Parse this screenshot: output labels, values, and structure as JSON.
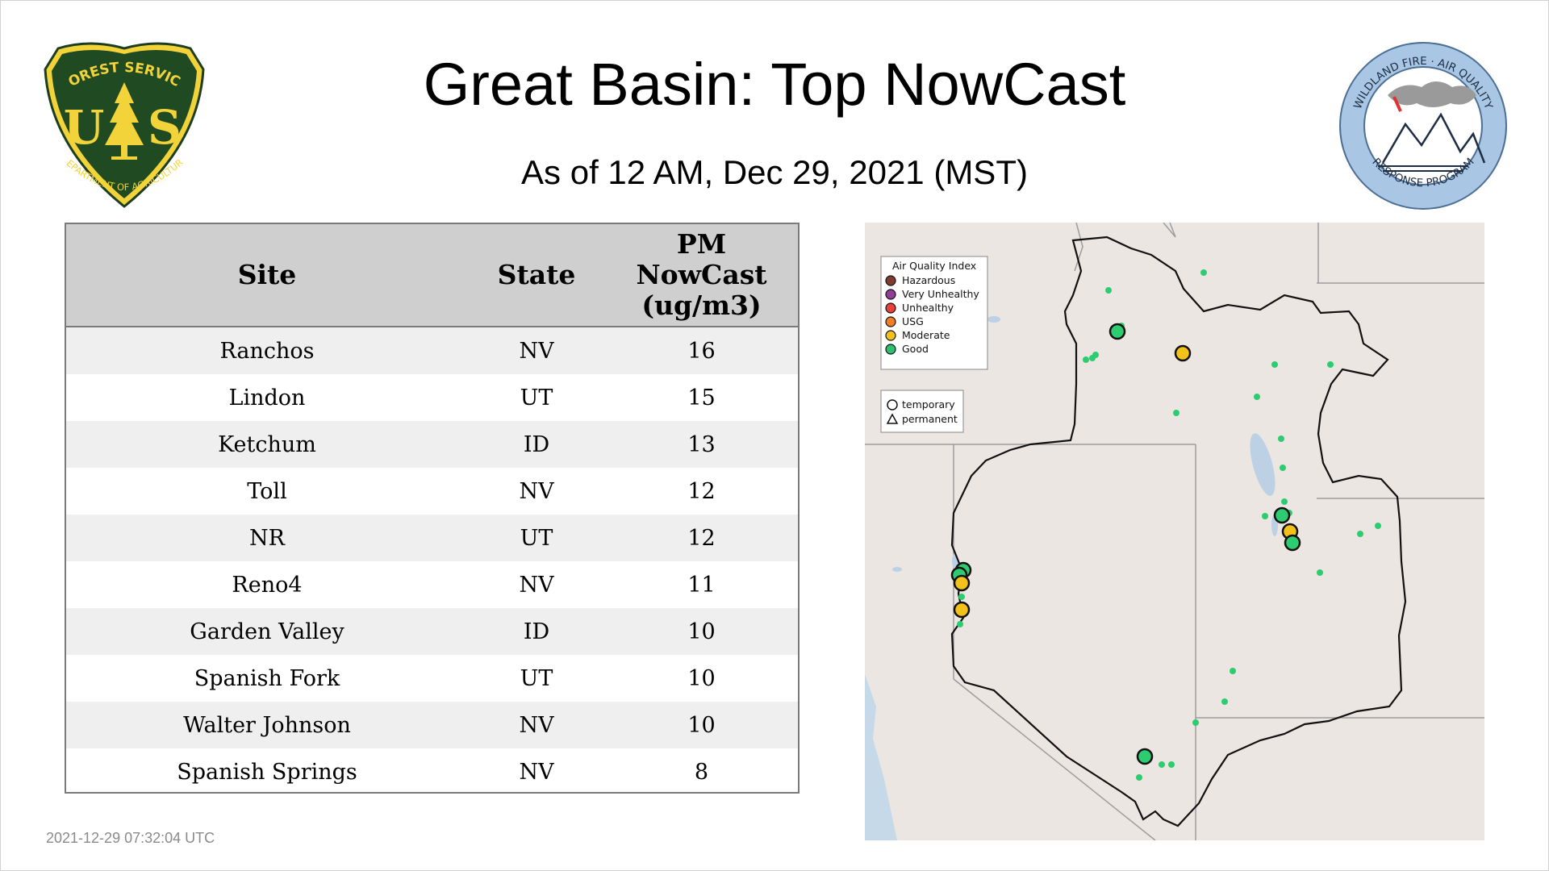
{
  "title": "Great Basin: Top NowCast",
  "subtitle": "As of 12 AM, Dec 29, 2021 (MST)",
  "timestamp": "2021-12-29 07:32:04 UTC",
  "logos": {
    "forest_service": {
      "top_text": "FOREST SERVICE",
      "letters": "U S",
      "bottom_text": "DEPARTMENT OF AGRICULTURE"
    },
    "wildland": {
      "top_text": "WILDLAND FIRE · AIR QUALITY",
      "bottom_text": "RESPONSE PROGRAM"
    }
  },
  "table": {
    "headers": [
      "Site",
      "State",
      "PM NowCast (ug/m3)"
    ],
    "header_pm_lines": [
      "PM",
      "NowCast",
      "(ug/m3)"
    ],
    "rows": [
      {
        "site": "Ranchos",
        "state": "NV",
        "value": "16"
      },
      {
        "site": "Lindon",
        "state": "UT",
        "value": "15"
      },
      {
        "site": "Ketchum",
        "state": "ID",
        "value": "13"
      },
      {
        "site": "Toll",
        "state": "NV",
        "value": "12"
      },
      {
        "site": "NR",
        "state": "UT",
        "value": "12"
      },
      {
        "site": "Reno4",
        "state": "NV",
        "value": "11"
      },
      {
        "site": "Garden Valley",
        "state": "ID",
        "value": "10"
      },
      {
        "site": "Spanish Fork",
        "state": "UT",
        "value": "10"
      },
      {
        "site": "Walter Johnson",
        "state": "NV",
        "value": "10"
      },
      {
        "site": "Spanish Springs",
        "state": "NV",
        "value": "8"
      }
    ]
  },
  "map": {
    "legend_title": "Air Quality Index",
    "aqi_levels": [
      {
        "label": "Hazardous",
        "color": "#7e3b2e"
      },
      {
        "label": "Very Unhealthy",
        "color": "#8f3f97"
      },
      {
        "label": "Unhealthy",
        "color": "#e8413a"
      },
      {
        "label": "USG",
        "color": "#f07e23"
      },
      {
        "label": "Moderate",
        "color": "#f2c21b"
      },
      {
        "label": "Good",
        "color": "#2fbf71"
      }
    ],
    "monitor_types": [
      {
        "label": "temporary",
        "shape": "circle"
      },
      {
        "label": "permanent",
        "shape": "triangle"
      }
    ]
  }
}
